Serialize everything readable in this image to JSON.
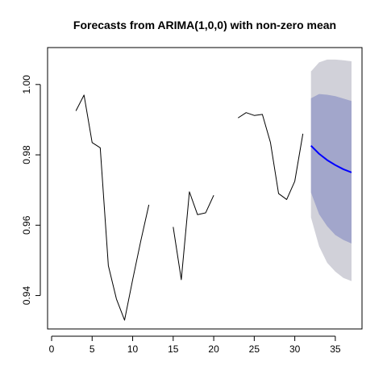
{
  "chart_data": {
    "type": "line",
    "title": "Forecasts from ARIMA(1,0,0) with non-zero mean",
    "xlabel": "",
    "ylabel": "",
    "xlim": [
      0,
      37
    ],
    "ylim": [
      0.9305,
      1.0105
    ],
    "x_ticks": [
      0,
      5,
      10,
      15,
      20,
      25,
      30,
      35
    ],
    "y_ticks": [
      0.94,
      0.96,
      0.98,
      1.0
    ],
    "x_tick_labels": [
      "0",
      "5",
      "10",
      "15",
      "20",
      "25",
      "30",
      "35"
    ],
    "y_tick_labels": [
      "0.94",
      "0.96",
      "0.98",
      "1.00"
    ],
    "grid": false,
    "series": [
      {
        "role": "observed",
        "color": "#000000",
        "points": [
          [
            3,
            0.9925
          ],
          [
            4,
            0.997
          ],
          [
            5,
            0.9835
          ],
          [
            6,
            0.982
          ],
          [
            7,
            0.9485
          ],
          [
            8,
            0.939
          ],
          [
            9,
            0.933
          ],
          [
            10,
            0.9445
          ],
          [
            11,
            0.9555
          ],
          [
            12,
            0.9658
          ],
          [
            13,
            null
          ],
          [
            14,
            null
          ],
          [
            15,
            0.9595
          ],
          [
            16,
            0.9445
          ],
          [
            17,
            0.9695
          ],
          [
            18,
            0.963
          ],
          [
            19,
            0.9635
          ],
          [
            20,
            0.9685
          ],
          [
            21,
            null
          ],
          [
            22,
            null
          ],
          [
            23,
            0.9905
          ],
          [
            24,
            0.992
          ],
          [
            25,
            0.9912
          ],
          [
            26,
            0.9915
          ],
          [
            27,
            0.9835
          ],
          [
            28,
            0.969
          ],
          [
            29,
            0.9673
          ],
          [
            30,
            0.9725
          ],
          [
            31,
            0.986
          ]
        ]
      },
      {
        "role": "forecast",
        "color": "#0000ff",
        "points": [
          [
            32,
            0.9826
          ],
          [
            33,
            0.9803
          ],
          [
            34,
            0.9785
          ],
          [
            35,
            0.9771
          ],
          [
            36,
            0.9759
          ],
          [
            37,
            0.975
          ]
        ]
      }
    ],
    "intervals": [
      {
        "level": "95",
        "color": "#d1d1d9",
        "x": [
          32,
          33,
          34,
          35,
          36,
          37
        ],
        "lower": [
          0.9622,
          0.954,
          0.9493,
          0.9468,
          0.945,
          0.9441
        ],
        "upper": [
          1.0037,
          1.0063,
          1.0071,
          1.0071,
          1.0069,
          1.0066
        ]
      },
      {
        "level": "80",
        "color": "#a2a6cb",
        "x": [
          32,
          33,
          34,
          35,
          36,
          37
        ],
        "lower": [
          0.9693,
          0.9631,
          0.9597,
          0.9572,
          0.9558,
          0.9548
        ],
        "upper": [
          0.9961,
          0.9973,
          0.9971,
          0.9967,
          0.996,
          0.9953
        ]
      }
    ]
  }
}
